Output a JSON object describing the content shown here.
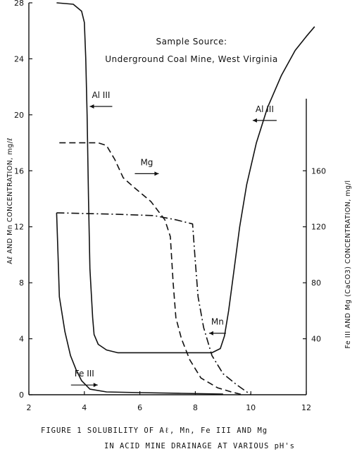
{
  "header": {
    "line1": "Sample Source:",
    "line2": "Underground Coal Mine, West Virginia"
  },
  "caption": {
    "line1": "FIGURE 1  SOLUBILITY OF Aℓ, Mn, Fe III AND Mg",
    "line2": "IN ACID MINE DRAINAGE AT VARIOUS pH's"
  },
  "chart_data": {
    "type": "line",
    "title": "",
    "xlabel": "",
    "ylabel": "Aℓ AND Mn CONCENTRATION, mg/ℓ",
    "y2label": "Fe III AND Mg (CaCO3) CONCENTRATION, mg/l",
    "xlim": [
      2,
      12
    ],
    "ylim": [
      0,
      28
    ],
    "y2lim": [
      0,
      280
    ],
    "x_ticks": [
      2,
      4,
      6,
      8,
      10,
      12
    ],
    "y_ticks": [
      0,
      4,
      8,
      12,
      16,
      20,
      24,
      28
    ],
    "y2_ticks": [
      40,
      80,
      120,
      160
    ],
    "grid": false,
    "series": [
      {
        "name": "Al III",
        "axis": "left",
        "style": "solid",
        "points": [
          [
            3.0,
            28.0
          ],
          [
            3.6,
            27.9
          ],
          [
            3.9,
            27.4
          ],
          [
            4.0,
            26.6
          ],
          [
            4.05,
            24.0
          ],
          [
            4.1,
            20.0
          ],
          [
            4.15,
            14.0
          ],
          [
            4.2,
            9.0
          ],
          [
            4.25,
            7.2
          ],
          [
            4.3,
            5.5
          ],
          [
            4.35,
            4.3
          ],
          [
            4.5,
            3.6
          ],
          [
            4.8,
            3.2
          ],
          [
            5.2,
            3.0
          ],
          [
            6.0,
            3.0
          ],
          [
            7.0,
            3.0
          ],
          [
            8.0,
            3.0
          ],
          [
            8.6,
            3.0
          ],
          [
            8.9,
            3.3
          ],
          [
            9.05,
            4.2
          ],
          [
            9.2,
            6.0
          ],
          [
            9.4,
            9.0
          ],
          [
            9.6,
            12.0
          ],
          [
            9.85,
            15.0
          ],
          [
            10.2,
            18.0
          ],
          [
            10.6,
            20.5
          ],
          [
            11.1,
            22.8
          ],
          [
            11.6,
            24.6
          ],
          [
            12.0,
            25.6
          ],
          [
            12.3,
            26.3
          ]
        ]
      },
      {
        "name": "Mg",
        "axis": "right",
        "style": "dashed",
        "points": [
          [
            3.1,
            180
          ],
          [
            4.5,
            180
          ],
          [
            4.8,
            178
          ],
          [
            5.1,
            168
          ],
          [
            5.4,
            155
          ],
          [
            5.8,
            148
          ],
          [
            6.4,
            138
          ],
          [
            6.9,
            125
          ],
          [
            7.1,
            113
          ],
          [
            7.2,
            80
          ],
          [
            7.3,
            55
          ],
          [
            7.5,
            40
          ],
          [
            7.8,
            25
          ],
          [
            8.2,
            12
          ],
          [
            8.8,
            5
          ],
          [
            9.3,
            2
          ],
          [
            9.7,
            0
          ]
        ]
      },
      {
        "name": "Mn",
        "axis": "left",
        "style": "dashdot",
        "points": [
          [
            3.0,
            13.0
          ],
          [
            5.0,
            12.9
          ],
          [
            6.5,
            12.8
          ],
          [
            7.3,
            12.5
          ],
          [
            7.9,
            12.2
          ],
          [
            8.0,
            9.5
          ],
          [
            8.1,
            7.0
          ],
          [
            8.3,
            4.8
          ],
          [
            8.6,
            2.8
          ],
          [
            9.0,
            1.5
          ],
          [
            9.5,
            0.7
          ],
          [
            10.0,
            0.0
          ]
        ]
      },
      {
        "name": "Fe III",
        "axis": "right",
        "style": "solid",
        "points": [
          [
            3.0,
            130
          ],
          [
            3.05,
            100
          ],
          [
            3.1,
            70
          ],
          [
            3.3,
            45
          ],
          [
            3.5,
            28
          ],
          [
            3.7,
            18
          ],
          [
            3.9,
            10
          ],
          [
            4.2,
            4
          ],
          [
            4.8,
            2
          ],
          [
            6.0,
            1.5
          ],
          [
            7.5,
            1.0
          ],
          [
            9.0,
            0.5
          ]
        ]
      }
    ],
    "annotations": [
      {
        "text": "Al III",
        "at": [
          4.6,
          21.2
        ]
      },
      {
        "text": "Mg",
        "at": [
          6.25,
          16.4
        ]
      },
      {
        "text": "Mn",
        "at": [
          8.8,
          5.0
        ]
      },
      {
        "text": "Fe III",
        "at": [
          4.0,
          1.3
        ]
      },
      {
        "text": "Al III",
        "at": [
          10.5,
          20.2
        ]
      }
    ]
  }
}
